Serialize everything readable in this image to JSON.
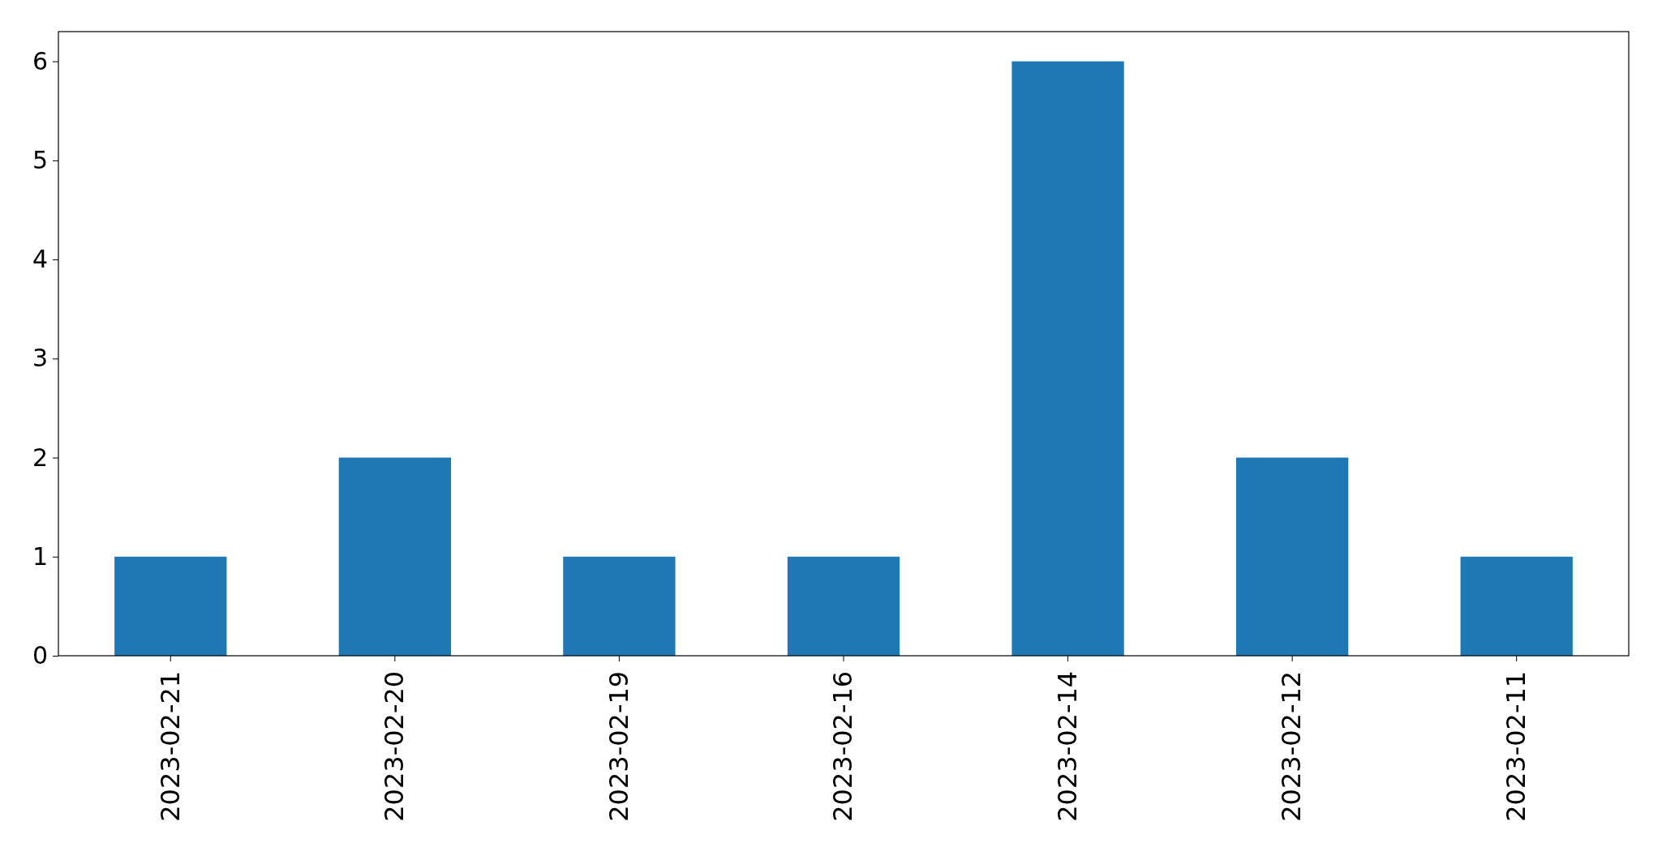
{
  "chart_data": {
    "type": "bar",
    "categories": [
      "2023-02-21",
      "2023-02-20",
      "2023-02-19",
      "2023-02-16",
      "2023-02-14",
      "2023-02-12",
      "2023-02-11"
    ],
    "values": [
      1,
      2,
      1,
      1,
      6,
      2,
      1
    ],
    "color": "#1f77b4",
    "ylim": [
      0,
      6.3
    ],
    "yticks": [
      0,
      1,
      2,
      3,
      4,
      5,
      6
    ],
    "grid": false
  }
}
